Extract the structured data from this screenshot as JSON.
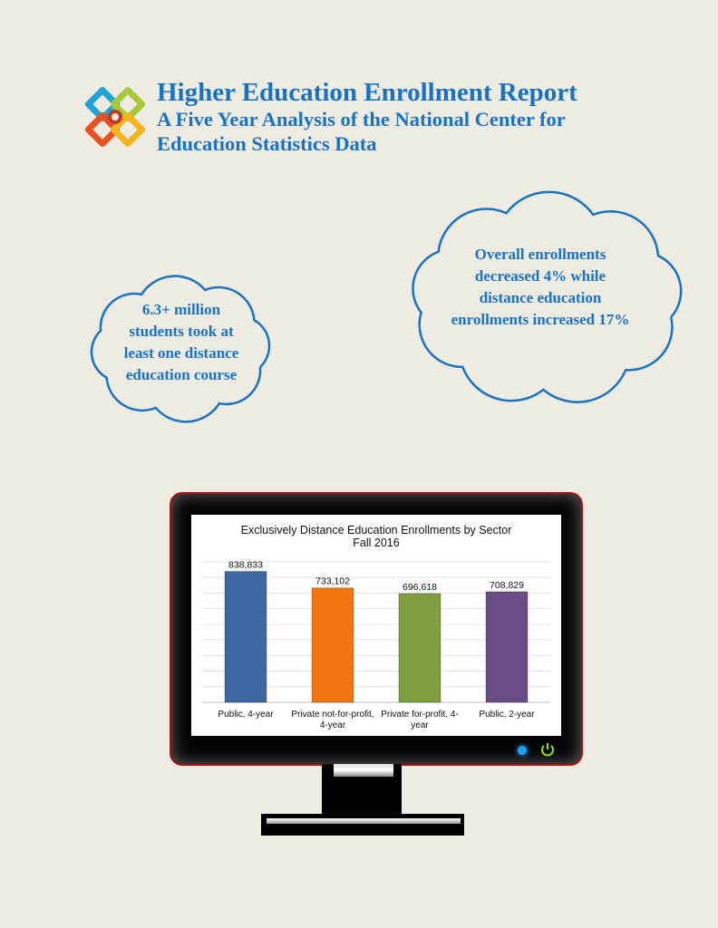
{
  "header": {
    "title": "Higher Education Enrollment Report",
    "subtitle_line1": "A Five Year Analysis of the National Center for",
    "subtitle_line2": "Education Statistics Data"
  },
  "clouds": {
    "left": {
      "lines": [
        "6.3+ million",
        "students took at",
        "least one distance",
        "education course"
      ]
    },
    "right": {
      "lines": [
        "Overall enrollments",
        "decreased 4% while",
        "distance education",
        "enrollments increased 17%"
      ]
    }
  },
  "colors": {
    "accent": "#1a73c0",
    "monitor_border": "#b01010"
  },
  "chart_data": {
    "type": "bar",
    "title": "Exclusively Distance Education Enrollments by Sector",
    "subtitle": "Fall 2016",
    "categories": [
      [
        "Public, 4-year"
      ],
      [
        "Private not-for-profit,",
        "4-year"
      ],
      [
        "Private for-profit, 4-",
        "year"
      ],
      [
        "Public, 2-year"
      ]
    ],
    "values": [
      838833,
      733102,
      696618,
      708829
    ],
    "data_labels": [
      "838,833",
      "733,102",
      "696,618",
      "708,829"
    ],
    "colors": [
      "#3e6aa3",
      "#f2750f",
      "#7e9e40",
      "#6a4d87"
    ],
    "ylim": [
      0,
      900000
    ],
    "grid": true,
    "xlabel": "",
    "ylabel": ""
  }
}
